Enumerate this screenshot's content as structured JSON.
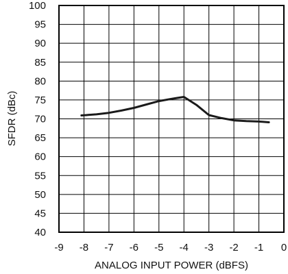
{
  "chart_data": {
    "type": "line",
    "xlabel": "ANALOG INPUT POWER (dBFS)",
    "ylabel": "SFDR (dBc)",
    "xlim": [
      -9,
      0
    ],
    "ylim": [
      40,
      100
    ],
    "x_ticks": [
      "-9",
      "-8",
      "-7",
      "-6",
      "-5",
      "-4",
      "-3",
      "-2",
      "-1",
      "0"
    ],
    "y_ticks": [
      "40",
      "45",
      "50",
      "55",
      "60",
      "65",
      "70",
      "75",
      "80",
      "85",
      "90",
      "95",
      "100"
    ],
    "grid": true,
    "line_color": "#1a1a1a",
    "series": [
      {
        "x": [
          -8.1,
          -7.5,
          -7.0,
          -6.5,
          -6.0,
          -5.5,
          -5.0,
          -4.5,
          -4.0,
          -3.5,
          -3.0,
          -2.5,
          -2.0,
          -1.5,
          -1.0,
          -0.6
        ],
        "y": [
          70.9,
          71.2,
          71.6,
          72.2,
          72.9,
          73.8,
          74.7,
          75.3,
          75.8,
          73.7,
          71.0,
          70.2,
          69.6,
          69.4,
          69.3,
          69.1
        ]
      }
    ]
  }
}
